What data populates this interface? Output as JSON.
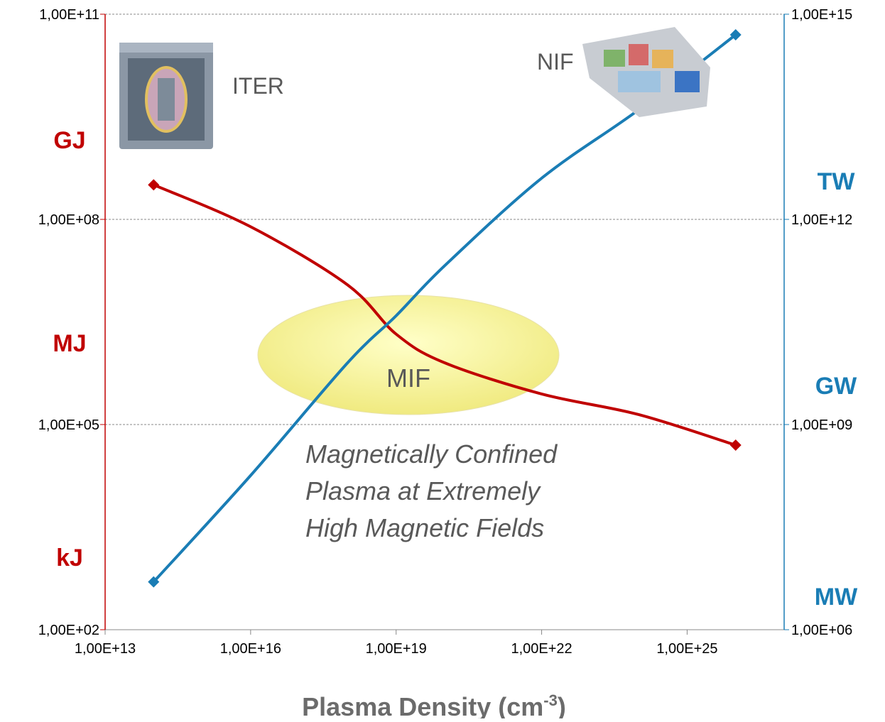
{
  "chart_data": {
    "type": "line",
    "x_label": "Plasma Density (cm",
    "x_label_sup": "-3",
    "x_label_end": ")",
    "x": [
      100000000000000.0,
      1e+16,
      1e+18,
      1e+19,
      1e+20,
      1e+22,
      1e+24,
      1e+26
    ],
    "xlim": [
      10000000000000.0,
      1e+27
    ],
    "xlog": true,
    "xticks": [
      {
        "value": 10000000000000.0,
        "label": "1,00E+13"
      },
      {
        "value": 1e+16,
        "label": "1,00E+16"
      },
      {
        "value": 1e+19,
        "label": "1,00E+19"
      },
      {
        "value": 1e+22,
        "label": "1,00E+22"
      },
      {
        "value": 1e+25,
        "label": "1,00E+25"
      }
    ],
    "ylim": [
      100.0,
      100000000000.0
    ],
    "ylog": true,
    "yticks": [
      {
        "value": 100.0,
        "label": "1,00E+02"
      },
      {
        "value": 100000.0,
        "label": "1,00E+05"
      },
      {
        "value": 100000000.0,
        "label": "1,00E+08"
      },
      {
        "value": 100000000000.0,
        "label": "1,00E+11"
      }
    ],
    "y2lim": [
      1000000.0,
      1000000000000000.0
    ],
    "y2log": true,
    "y2ticks": [
      {
        "value": 1000000.0,
        "label": "1,00E+06"
      },
      {
        "value": 1000000000.0,
        "label": "1,00E+09"
      },
      {
        "value": 1000000000000.0,
        "label": "1,00E+12"
      },
      {
        "value": 1000000000000000.0,
        "label": "1,00E+15"
      }
    ],
    "grid": true,
    "series": [
      {
        "color": "#c00000",
        "values": [
          320000000.0,
          78000000.0,
          11000000.0,
          2100000.0,
          800000.0,
          280000.0,
          140000.0,
          50000.0
        ]
      },
      {
        "color": "#1a7db5",
        "axis": "y2",
        "values": [
          5000000.0,
          180000000.0,
          8000000000.0,
          39000000000.0,
          210000000000.0,
          4000000000000.0,
          40000000000000.0,
          500000000000000.0
        ]
      }
    ],
    "left_unit_labels": [
      "GJ",
      "MJ",
      "kJ"
    ],
    "right_unit_labels": [
      "TW",
      "GW",
      "MW"
    ],
    "annotations": {
      "iter": "ITER",
      "nif": "NIF",
      "mif": "MIF",
      "note": [
        "Magnetically Confined",
        "Plasma at Extremely",
        "High Magnetic Fields"
      ]
    }
  }
}
